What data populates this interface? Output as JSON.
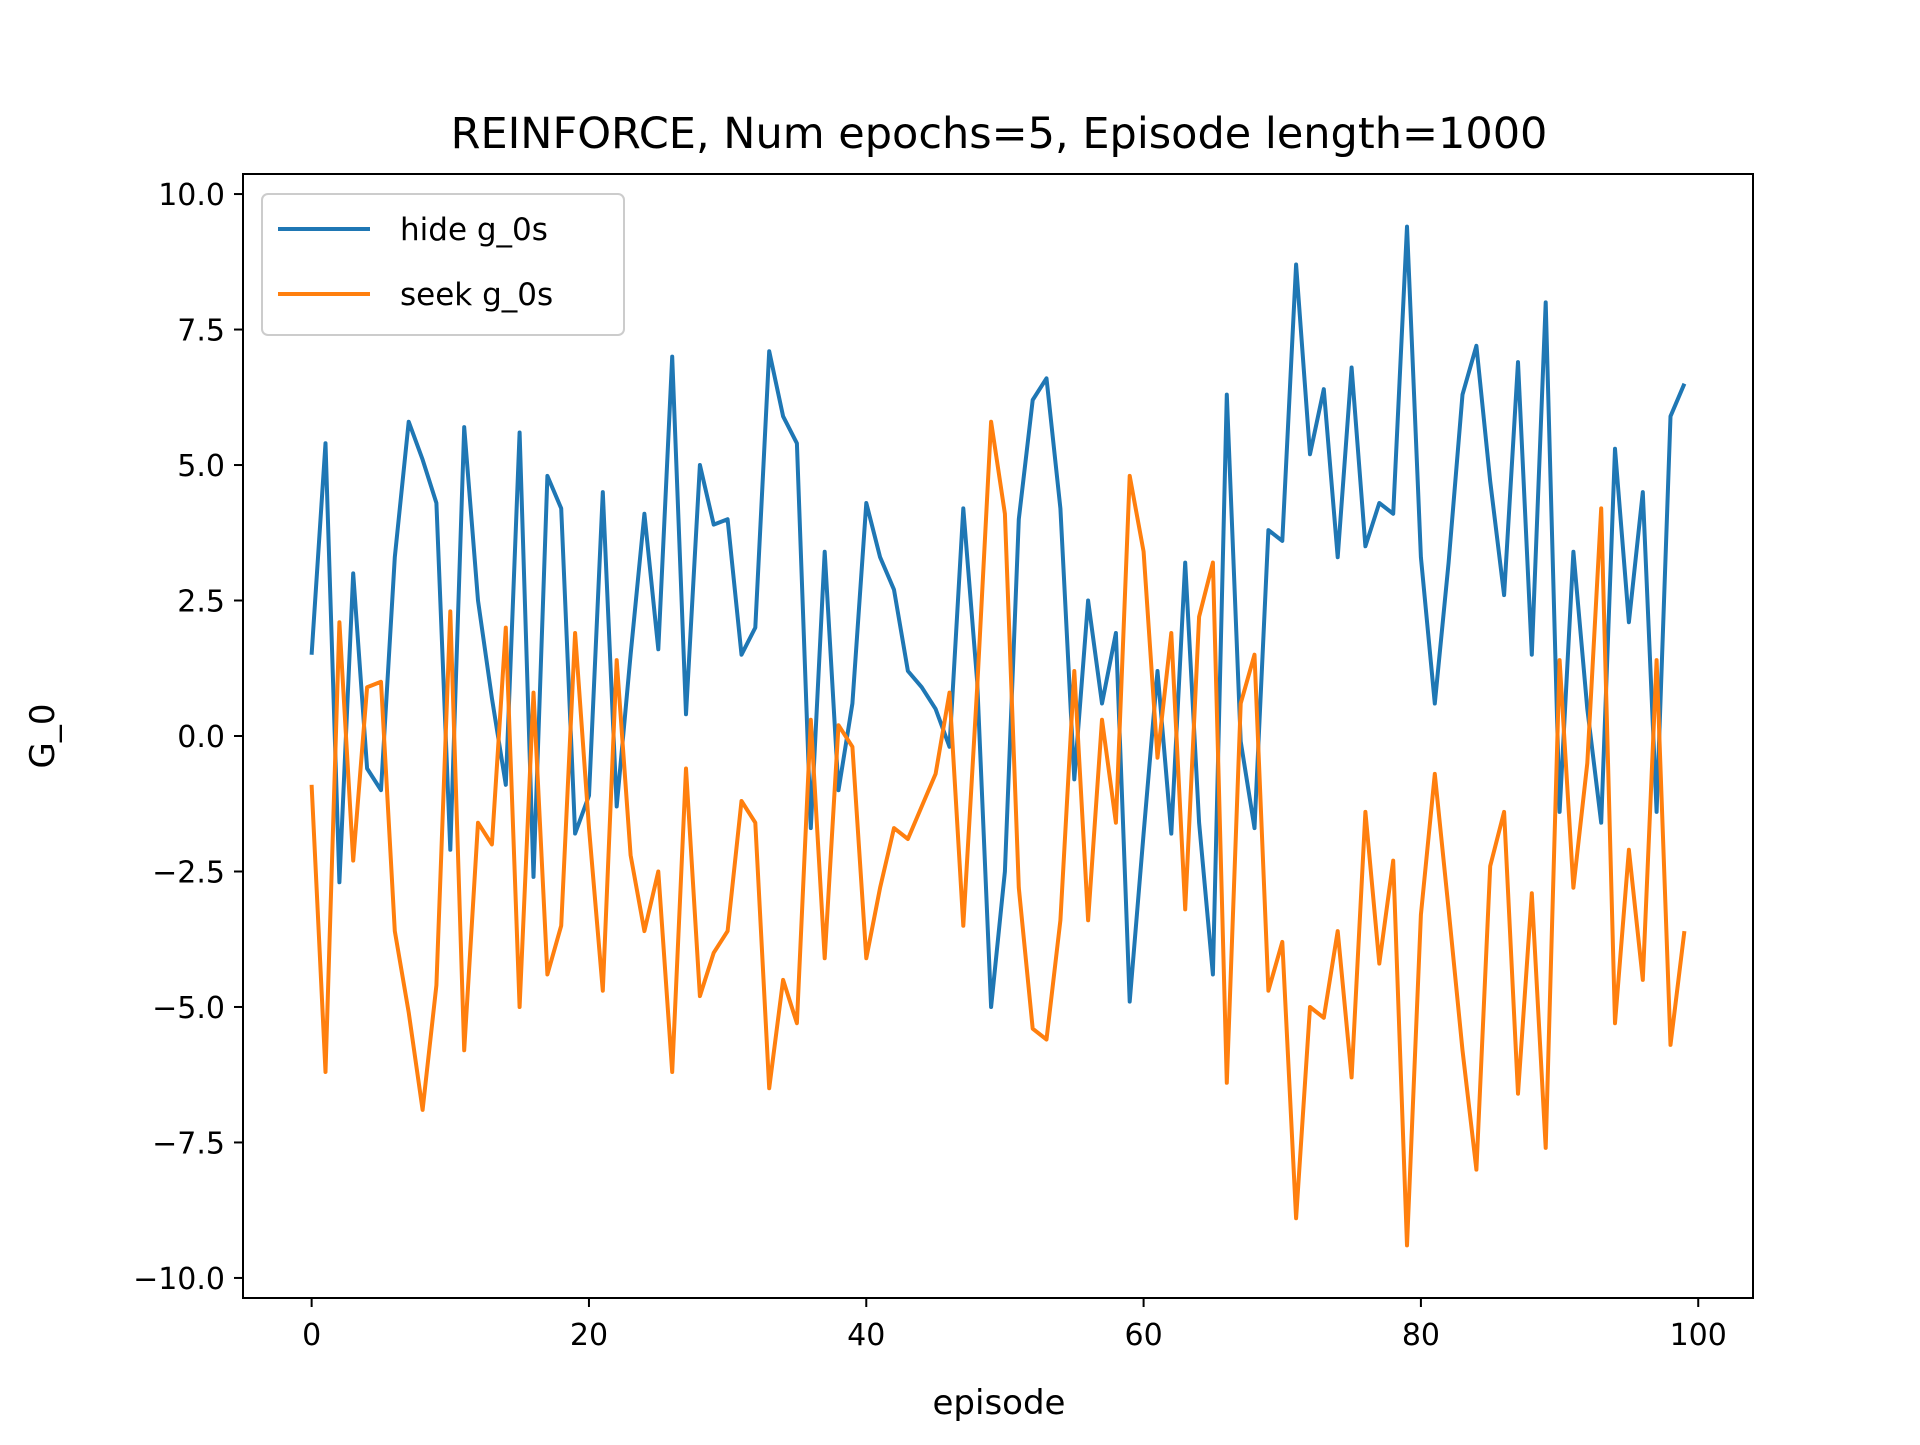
{
  "chart_data": {
    "type": "line",
    "title": "REINFORCE, Num epochs=5, Episode length=1000",
    "xlabel": "episode",
    "ylabel": "G_0",
    "xlim": [
      -4.95,
      103.95
    ],
    "ylim": [
      -10.37,
      10.37
    ],
    "x_ticks": [
      0,
      20,
      40,
      60,
      80,
      100
    ],
    "y_ticks": [
      10.0,
      7.5,
      5.0,
      2.5,
      0.0,
      -2.5,
      -5.0,
      -7.5,
      -10.0
    ],
    "x_tick_labels": [
      "0",
      "20",
      "40",
      "60",
      "80",
      "100"
    ],
    "y_tick_labels": [
      "10.0",
      "7.5",
      "5.0",
      "2.5",
      "0.0",
      "−2.5",
      "−5.0",
      "−7.5",
      "−10.0"
    ],
    "grid": false,
    "legend_position": "top-left",
    "series": [
      {
        "name": "hide g_0s",
        "color": "#1f77b4",
        "values": [
          1.5,
          5.4,
          -2.7,
          3.0,
          -0.6,
          -1.0,
          3.3,
          5.8,
          5.1,
          4.3,
          -2.1,
          5.7,
          2.5,
          0.7,
          -0.9,
          5.6,
          -2.6,
          4.8,
          4.2,
          -1.8,
          -1.1,
          4.5,
          -1.3,
          1.5,
          4.1,
          1.6,
          7.0,
          0.4,
          5.0,
          3.9,
          4.0,
          1.5,
          2.0,
          7.1,
          5.9,
          5.4,
          -1.7,
          3.4,
          -1.0,
          0.6,
          4.3,
          3.3,
          2.7,
          1.2,
          0.9,
          0.5,
          -0.2,
          4.2,
          1.0,
          -5.0,
          -2.5,
          4.0,
          6.2,
          6.6,
          4.2,
          -0.8,
          2.5,
          0.6,
          1.9,
          -4.9,
          -1.8,
          1.2,
          -1.8,
          3.2,
          -1.6,
          -4.4,
          6.3,
          -0.1,
          -1.7,
          3.8,
          3.6,
          8.7,
          5.2,
          6.4,
          3.3,
          6.8,
          3.5,
          4.3,
          4.1,
          9.4,
          3.3,
          0.6,
          3.2,
          6.3,
          7.2,
          4.7,
          2.6,
          6.9,
          1.5,
          8.0,
          -1.4,
          3.4,
          0.5,
          -1.6,
          5.3,
          2.1,
          4.5,
          -1.4,
          5.9,
          6.5
        ]
      },
      {
        "name": "seek g_0s",
        "color": "#ff7f0e",
        "values": [
          -0.9,
          -6.2,
          2.1,
          -2.3,
          0.9,
          1.0,
          -3.6,
          -5.1,
          -6.9,
          -4.6,
          2.3,
          -5.8,
          -1.6,
          -2.0,
          2.0,
          -5.0,
          0.8,
          -4.4,
          -3.5,
          1.9,
          -1.7,
          -4.7,
          1.4,
          -2.2,
          -3.6,
          -2.5,
          -6.2,
          -0.6,
          -4.8,
          -4.0,
          -3.6,
          -1.2,
          -1.6,
          -6.5,
          -4.5,
          -5.3,
          0.3,
          -4.1,
          0.2,
          -0.2,
          -4.1,
          -2.8,
          -1.7,
          -1.9,
          -1.3,
          -0.7,
          0.8,
          -3.5,
          0.9,
          5.8,
          4.1,
          -2.8,
          -5.4,
          -5.6,
          -3.4,
          1.2,
          -3.4,
          0.3,
          -1.6,
          4.8,
          3.4,
          -0.4,
          1.9,
          -3.2,
          2.2,
          3.2,
          -6.4,
          0.6,
          1.5,
          -4.7,
          -3.8,
          -8.9,
          -5.0,
          -5.2,
          -3.6,
          -6.3,
          -1.4,
          -4.2,
          -2.3,
          -9.4,
          -3.3,
          -0.7,
          -3.2,
          -5.8,
          -8.0,
          -2.4,
          -1.4,
          -6.6,
          -2.9,
          -7.6,
          1.4,
          -2.8,
          -0.5,
          4.2,
          -5.3,
          -2.1,
          -4.5,
          1.4,
          -5.7,
          -3.6
        ]
      }
    ]
  }
}
